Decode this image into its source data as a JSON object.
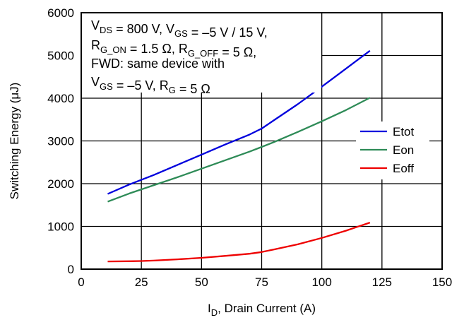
{
  "chart_data": {
    "type": "line",
    "xlabel": {
      "main": "I",
      "sub": "D",
      "rest": ", Drain Current (A)"
    },
    "ylabel": "Switching Energy (μJ)",
    "xlim": [
      0,
      150
    ],
    "ylim": [
      0,
      6000
    ],
    "xticks": [
      0,
      25,
      50,
      75,
      100,
      125,
      150
    ],
    "yticks": [
      0,
      1000,
      2000,
      3000,
      4000,
      5000,
      6000
    ],
    "grid": true,
    "legend_position": "right",
    "annotation": {
      "line1": [
        {
          "t": "V"
        },
        {
          "t": "DS",
          "sub": true
        },
        {
          "t": " = 800 V, V"
        },
        {
          "t": "GS",
          "sub": true
        },
        {
          "t": " = –5 V / 15 V,"
        }
      ],
      "line2": [
        {
          "t": "R"
        },
        {
          "t": "G_ON",
          "sub": true
        },
        {
          "t": " = 1.5 Ω, R"
        },
        {
          "t": "G_OFF",
          "sub": true
        },
        {
          "t": " = 5 Ω,"
        }
      ],
      "line3": [
        {
          "t": "FWD: same device with"
        }
      ],
      "line4": [
        {
          "t": "V"
        },
        {
          "t": "GS",
          "sub": true
        },
        {
          "t": " = –5 V, R"
        },
        {
          "t": "G",
          "sub": true
        },
        {
          "t": " = 5 Ω"
        }
      ]
    },
    "series": [
      {
        "name": "Etot",
        "color": "#0000dd",
        "x": [
          11,
          20,
          30,
          40,
          50,
          60,
          70,
          75,
          80,
          90,
          100,
          110,
          120
        ],
        "y": [
          1760,
          1980,
          2200,
          2440,
          2680,
          2920,
          3150,
          3290,
          3480,
          3860,
          4270,
          4690,
          5110
        ]
      },
      {
        "name": "Eon",
        "color": "#2e8b57",
        "x": [
          11,
          20,
          30,
          40,
          50,
          60,
          70,
          75,
          80,
          90,
          100,
          110,
          120
        ],
        "y": [
          1580,
          1770,
          1960,
          2150,
          2350,
          2550,
          2750,
          2860,
          2970,
          3210,
          3460,
          3720,
          4010
        ]
      },
      {
        "name": "Eoff",
        "color": "#ee0000",
        "x": [
          11,
          20,
          25,
          30,
          40,
          50,
          60,
          70,
          75,
          80,
          90,
          100,
          110,
          120
        ],
        "y": [
          180,
          185,
          190,
          200,
          230,
          265,
          310,
          360,
          400,
          460,
          580,
          730,
          900,
          1090
        ]
      }
    ]
  }
}
